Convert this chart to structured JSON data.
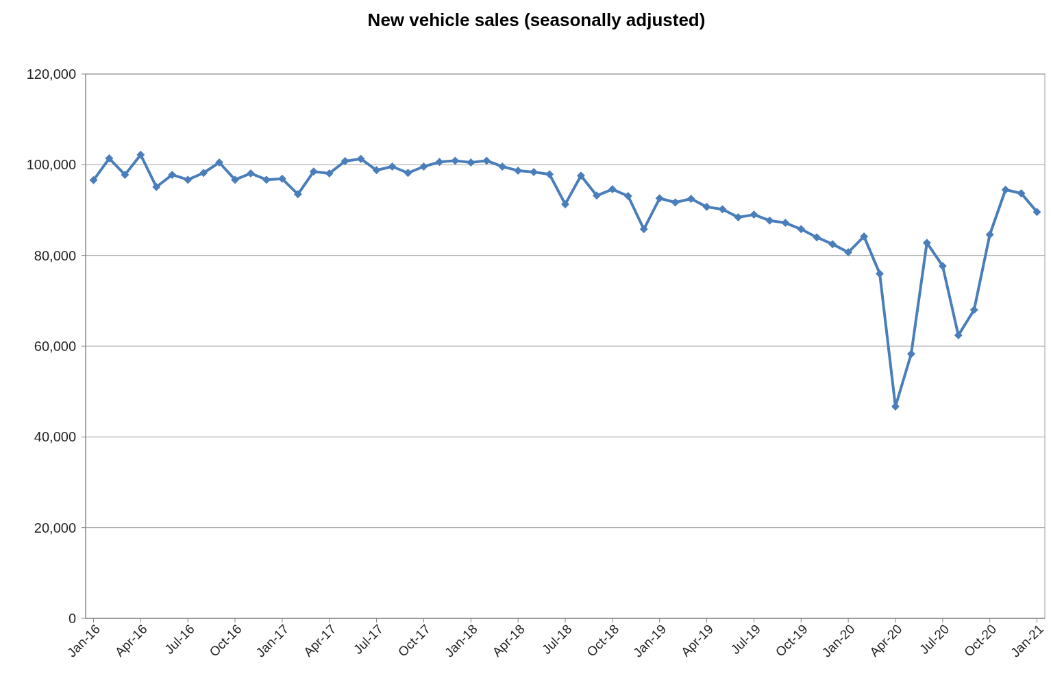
{
  "chart_data": {
    "type": "line",
    "title": "New vehicle sales (seasonally adjusted)",
    "categories": [
      "Jan-16",
      null,
      null,
      "Apr-16",
      null,
      null,
      "Jul-16",
      null,
      null,
      "Oct-16",
      null,
      null,
      "Jan-17",
      null,
      null,
      "Apr-17",
      null,
      null,
      "Jul-17",
      null,
      null,
      "Oct-17",
      null,
      null,
      "Jan-18",
      null,
      null,
      "Apr-18",
      null,
      null,
      "Jul-18",
      null,
      null,
      "Oct-18",
      null,
      null,
      "Jan-19",
      null,
      null,
      "Apr-19",
      null,
      null,
      "Jul-19",
      null,
      null,
      "Oct-19",
      null,
      null,
      "Jan-20",
      null,
      null,
      "Apr-20",
      null,
      null,
      "Jul-20",
      null,
      null,
      "Oct-20",
      null,
      null,
      "Jan-21"
    ],
    "series": [
      {
        "color": "#4a7ebb",
        "values": [
          96600,
          101400,
          97800,
          102200,
          95100,
          97800,
          96700,
          98200,
          100500,
          96700,
          98100,
          96700,
          96900,
          93500,
          98500,
          98100,
          100800,
          101300,
          98800,
          99600,
          98200,
          99600,
          100600,
          100900,
          100500,
          100900,
          99600,
          98700,
          98400,
          97900,
          91300,
          97600,
          93200,
          94600,
          93100,
          85800,
          92600,
          91700,
          92500,
          90700,
          90200,
          88400,
          89000,
          87700,
          87200,
          85800,
          84000,
          82500,
          80700,
          84200,
          76000,
          46700,
          58300,
          82800,
          77700,
          62400,
          68000,
          84600,
          94500,
          93700,
          89600
        ]
      }
    ],
    "ylim": [
      0,
      120000
    ],
    "yticks": [
      {
        "value": 0,
        "label": "0"
      },
      {
        "value": 20000,
        "label": "20,000"
      },
      {
        "value": 40000,
        "label": "40,000"
      },
      {
        "value": 60000,
        "label": "60,000"
      },
      {
        "value": 80000,
        "label": "80,000"
      },
      {
        "value": 100000,
        "label": "100,000"
      },
      {
        "value": 120000,
        "label": "120,000"
      }
    ],
    "grid": "y",
    "marker": "diamond",
    "line_style": "solid"
  }
}
